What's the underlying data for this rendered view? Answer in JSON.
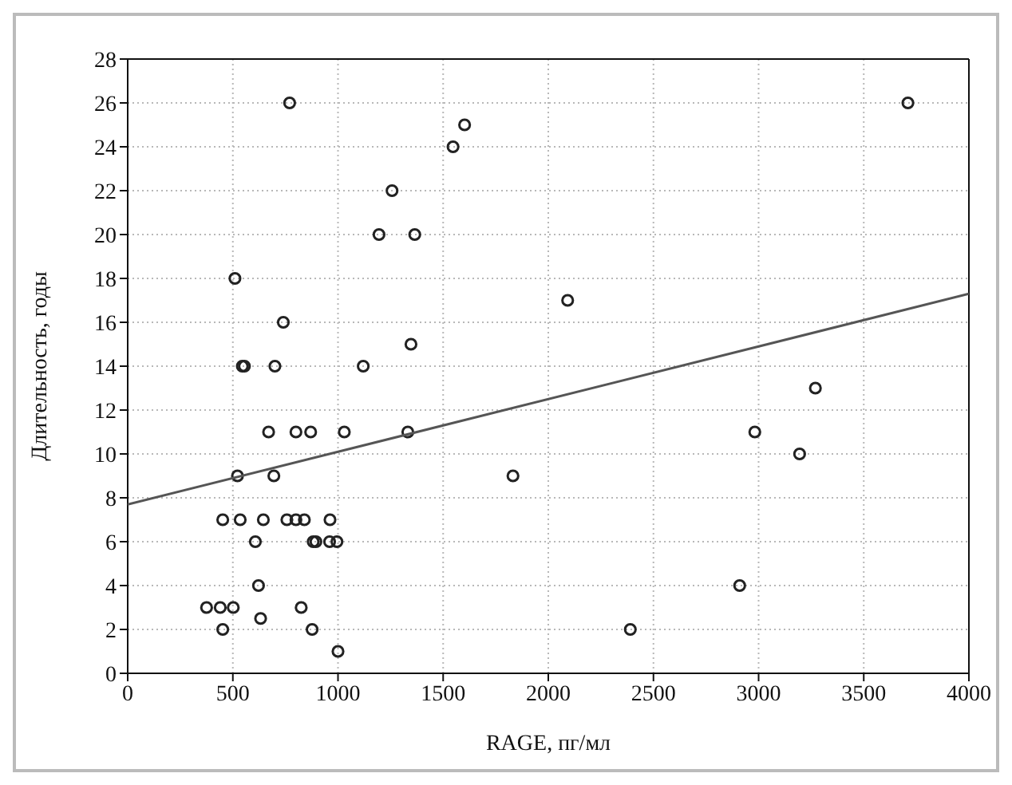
{
  "chart_data": {
    "type": "scatter",
    "xlabel": "RAGE, пг/мл",
    "ylabel": "Длительность, годы",
    "xlim": [
      0,
      4000
    ],
    "xticks": [
      0,
      500,
      1000,
      1500,
      2000,
      2500,
      3000,
      3500,
      4000
    ],
    "ylim": [
      0,
      28
    ],
    "yticks": [
      0,
      2,
      4,
      6,
      8,
      10,
      12,
      14,
      16,
      18,
      20,
      22,
      24,
      26,
      28
    ],
    "grid": true,
    "marker": "circle",
    "series": [
      {
        "type": "scatter",
        "color": "#222222",
        "x": [
          770,
          1602,
          1547,
          1257,
          1195,
          1365,
          510,
          2092,
          740,
          1347,
          545,
          555,
          700,
          1120,
          670,
          800,
          870,
          1030,
          1332,
          522,
          695,
          1832,
          452,
          535,
          645,
          757,
          800,
          840,
          962,
          607,
          882,
          895,
          960,
          995,
          622,
          375,
          440,
          502,
          825,
          632,
          452,
          877,
          2390,
          1000,
          3710,
          3270,
          2982,
          3195,
          2910
        ],
        "values": [
          26,
          25,
          24,
          22,
          20,
          20,
          18,
          17,
          16,
          15,
          14,
          14,
          14,
          14,
          11,
          11,
          11,
          11,
          11,
          9,
          9,
          9,
          7,
          7,
          7,
          7,
          7,
          7,
          7,
          6,
          6,
          6,
          6,
          6,
          4,
          3,
          3,
          3,
          3,
          2.5,
          2,
          2,
          2,
          1,
          26,
          13,
          11,
          10,
          4
        ]
      },
      {
        "type": "line",
        "color": "#555555",
        "marker": "none",
        "x": [
          0,
          4000
        ],
        "values": [
          7.7,
          17.3
        ]
      }
    ]
  }
}
